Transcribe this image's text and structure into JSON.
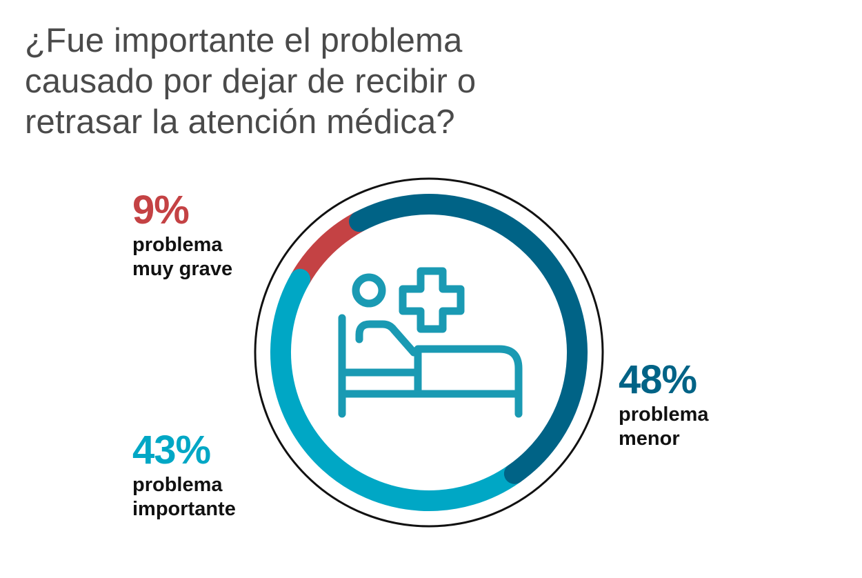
{
  "title_lines": [
    "¿Fue importante el problema",
    "causado por dejar de recibir o",
    "retrasar la atención médica?"
  ],
  "colors": {
    "muy_grave": "#c44244",
    "importante": "#00a7c5",
    "menor": "#006386",
    "outline": "#111111",
    "icon": "#1a9ab3",
    "title": "#4a4a4a"
  },
  "icon": "hospital-bed-patient-icon",
  "chart_data": {
    "type": "pie",
    "style": "donut",
    "title": "¿Fue importante el problema causado por dejar de recibir o retrasar la atención médica?",
    "unit": "%",
    "slices": [
      {
        "value": 9,
        "label": "9%",
        "desc_lines": [
          "problema",
          "muy grave"
        ],
        "color": "#c44244"
      },
      {
        "value": 43,
        "label": "43%",
        "desc_lines": [
          "problema",
          "importante"
        ],
        "color": "#00a7c5"
      },
      {
        "value": 48,
        "label": "48%",
        "desc_lines": [
          "problema",
          "menor"
        ],
        "color": "#006386"
      }
    ]
  }
}
